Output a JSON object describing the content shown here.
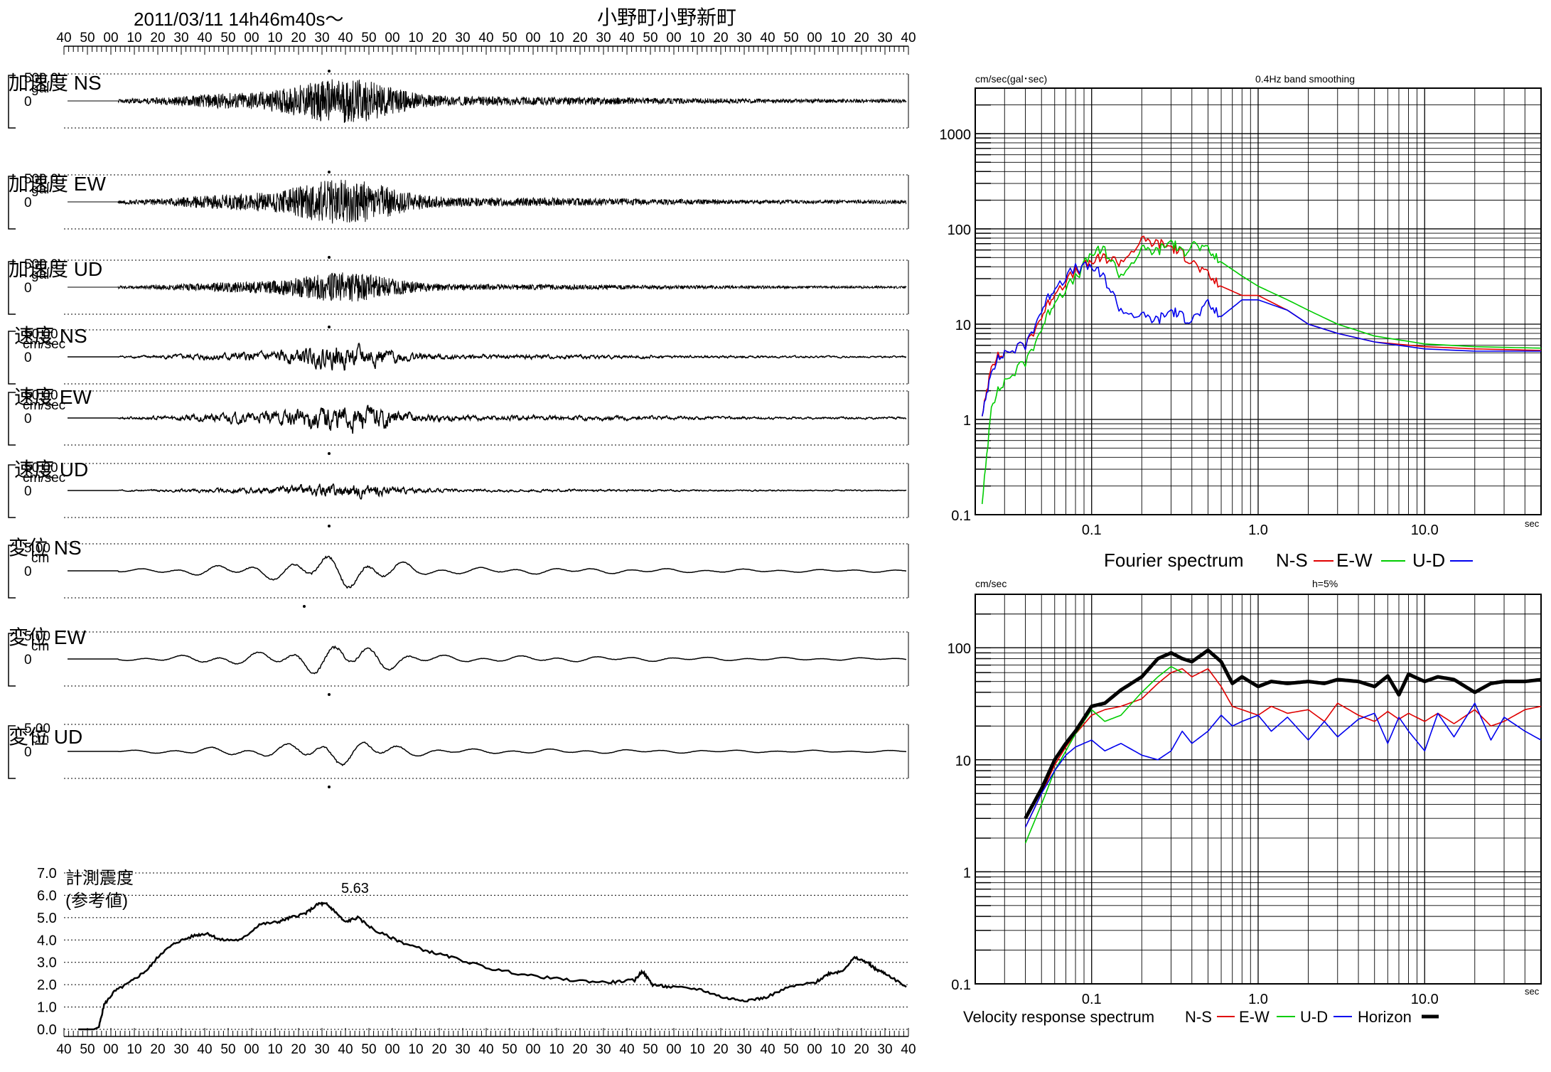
{
  "header": {
    "datetime": "2011/03/11  14h46m40s〜",
    "station": "小野町小野新町"
  },
  "time_axis_labels": [
    "40",
    "50",
    "00",
    "10",
    "20",
    "30",
    "40",
    "50",
    "00",
    "10",
    "20",
    "30",
    "40",
    "50",
    "00",
    "10",
    "20",
    "30",
    "40",
    "50",
    "00",
    "10",
    "20",
    "30",
    "40",
    "50",
    "00",
    "10",
    "20",
    "30",
    "40",
    "50",
    "00",
    "10",
    "20",
    "30",
    "40"
  ],
  "channels": [
    {
      "title": "加速度 NS",
      "scale": "500.0",
      "unit": "gal",
      "zero": "0",
      "kind": "acc",
      "seed": 11,
      "amp": 1.0,
      "peak_up": true
    },
    {
      "title": "加速度 EW",
      "scale": "500.0",
      "unit": "gal",
      "zero": "0",
      "kind": "acc",
      "seed": 23,
      "amp": 1.0,
      "peak_up": true
    },
    {
      "title": "加速度 UD",
      "scale": "500.0",
      "unit": "gal",
      "zero": "0",
      "kind": "acc",
      "seed": 37,
      "amp": 0.65,
      "peak_up": true
    },
    {
      "title": "速度 NS",
      "scale": "50.00",
      "unit": "cm/sec",
      "zero": "0",
      "kind": "vel",
      "seed": 41,
      "amp": 0.75,
      "peak_up": true
    },
    {
      "title": "速度 EW",
      "scale": "50.00",
      "unit": "cm/sec",
      "zero": "0",
      "kind": "vel",
      "seed": 53,
      "amp": 0.9,
      "peak_up": false
    },
    {
      "title": "速度 UD",
      "scale": "50.00",
      "unit": "cm/sec",
      "zero": "0",
      "kind": "vel",
      "seed": 67,
      "amp": 0.45,
      "peak_up": false
    },
    {
      "title": "変位 NS",
      "scale": "5.00",
      "unit": "cm",
      "zero": "0",
      "kind": "disp",
      "seed": 71,
      "amp": 1.0,
      "peak_up": false
    },
    {
      "title": "変位 EW",
      "scale": "5.00",
      "unit": "cm",
      "zero": "0",
      "kind": "disp",
      "seed": 83,
      "amp": 0.95,
      "peak_up": false
    },
    {
      "title": "変位 UD",
      "scale": "5.00",
      "unit": "cm",
      "zero": "0",
      "kind": "disp",
      "seed": 97,
      "amp": 0.75,
      "peak_up": false
    }
  ],
  "intensity": {
    "label_line1": "計測震度",
    "label_line2": "(参考値)",
    "peak_label": "5.63",
    "y_ticks": [
      "7.0",
      "6.0",
      "5.0",
      "4.0",
      "3.0",
      "2.0",
      "1.0",
      "0.0"
    ],
    "chart_data": {
      "type": "line",
      "x_unit": "sec",
      "x": [
        0,
        3,
        6,
        8,
        10,
        14,
        20,
        27,
        32,
        38,
        45,
        50,
        55,
        63,
        70,
        77,
        82,
        88,
        93,
        96,
        99,
        103,
        108,
        115,
        125,
        135,
        145,
        160,
        175,
        190,
        205,
        215,
        218,
        222,
        228,
        240,
        250,
        258,
        265,
        275,
        285,
        290,
        295,
        300,
        305,
        308,
        312,
        320
      ],
      "y": [
        0.0,
        0.0,
        0.0,
        0.1,
        1.1,
        1.7,
        2.1,
        2.7,
        3.4,
        3.9,
        4.2,
        4.3,
        4.0,
        4.0,
        4.7,
        4.8,
        5.0,
        5.2,
        5.63,
        5.6,
        5.3,
        4.8,
        5.0,
        4.4,
        3.9,
        3.5,
        3.2,
        2.7,
        2.4,
        2.2,
        2.1,
        2.2,
        2.6,
        2.0,
        1.9,
        1.8,
        1.4,
        1.3,
        1.4,
        1.9,
        2.1,
        2.5,
        2.6,
        3.2,
        3.0,
        2.7,
        2.5,
        1.9
      ],
      "ylim": [
        0,
        7
      ]
    }
  },
  "fourier": {
    "ylabel": "cm/sec(gal･sec)",
    "note": "0.4Hz band smoothing",
    "x_unit_label": "sec",
    "x_tick_labels": [
      "0.1",
      "1.0",
      "10.0"
    ],
    "y_tick_labels": [
      "1000",
      "100",
      "10",
      "1",
      "0.1"
    ],
    "legend_title": "Fourier spectrum",
    "legend": [
      {
        "label": "N-S",
        "color": "#e00000"
      },
      {
        "label": "E-W",
        "color": "#00cc00"
      },
      {
        "label": "U-D",
        "color": "#0000ee"
      }
    ],
    "chart_data": {
      "type": "line",
      "xscale": "log",
      "yscale": "log",
      "xlim": [
        0.02,
        50
      ],
      "ylim": [
        0.1,
        3000
      ],
      "series": [
        {
          "name": "N-S",
          "color": "#e00000",
          "x": [
            0.022,
            0.025,
            0.03,
            0.04,
            0.05,
            0.06,
            0.08,
            0.1,
            0.12,
            0.15,
            0.2,
            0.25,
            0.3,
            0.35,
            0.4,
            0.5,
            0.6,
            0.8,
            1.0,
            1.5,
            2,
            3,
            5,
            10,
            20,
            50
          ],
          "y": [
            1,
            4,
            5,
            6,
            12,
            22,
            35,
            45,
            50,
            45,
            75,
            70,
            65,
            55,
            45,
            32,
            25,
            20,
            20,
            14,
            10,
            8,
            6.5,
            5.8,
            5.5,
            5.3
          ]
        },
        {
          "name": "E-W",
          "color": "#00cc00",
          "x": [
            0.022,
            0.025,
            0.03,
            0.04,
            0.05,
            0.06,
            0.08,
            0.1,
            0.12,
            0.15,
            0.2,
            0.25,
            0.3,
            0.35,
            0.4,
            0.5,
            0.6,
            0.8,
            1.0,
            1.5,
            2,
            3,
            5,
            10,
            20,
            50
          ],
          "y": [
            0.12,
            1.5,
            2.5,
            4,
            9,
            18,
            30,
            55,
            60,
            32,
            60,
            58,
            75,
            55,
            70,
            58,
            45,
            32,
            25,
            18,
            14,
            10,
            7.5,
            6.2,
            5.8,
            5.6
          ]
        },
        {
          "name": "U-D",
          "color": "#0000ee",
          "x": [
            0.022,
            0.025,
            0.03,
            0.04,
            0.05,
            0.06,
            0.08,
            0.1,
            0.12,
            0.15,
            0.2,
            0.25,
            0.3,
            0.35,
            0.4,
            0.5,
            0.6,
            0.8,
            1.0,
            1.5,
            2,
            3,
            5,
            10,
            20,
            50
          ],
          "y": [
            1,
            3.5,
            5,
            6,
            14,
            25,
            38,
            40,
            30,
            14,
            12,
            11,
            14,
            12,
            11,
            16,
            12,
            18,
            18,
            14,
            10,
            8,
            6.5,
            5.5,
            5.2,
            5.2
          ]
        }
      ]
    }
  },
  "response": {
    "ylabel": "cm/sec",
    "note": "h=5%",
    "x_unit_label": "sec",
    "x_tick_labels": [
      "0.1",
      "1.0",
      "10.0"
    ],
    "y_tick_labels": [
      "100",
      "10",
      "1",
      "0.1"
    ],
    "legend_title": "Velocity response spectrum",
    "legend": [
      {
        "label": "N-S",
        "color": "#e00000",
        "bold": false
      },
      {
        "label": "E-W",
        "color": "#00cc00",
        "bold": false
      },
      {
        "label": "U-D",
        "color": "#0000ee",
        "bold": false
      },
      {
        "label": "Horizon",
        "color": "#000000",
        "bold": true
      }
    ],
    "chart_data": {
      "type": "line",
      "xscale": "log",
      "yscale": "log",
      "xlim": [
        0.02,
        50
      ],
      "ylim": [
        0.1,
        300
      ],
      "series": [
        {
          "name": "N-S",
          "color": "#e00000",
          "x": [
            0.04,
            0.05,
            0.06,
            0.07,
            0.08,
            0.1,
            0.12,
            0.15,
            0.2,
            0.25,
            0.3,
            0.35,
            0.4,
            0.5,
            0.6,
            0.7,
            0.8,
            1.0,
            1.2,
            1.5,
            2,
            2.5,
            3,
            4,
            5,
            6,
            7,
            8,
            10,
            12,
            15,
            20,
            25,
            30,
            40,
            50
          ],
          "y": [
            2.5,
            5,
            9,
            13,
            17,
            25,
            28,
            30,
            35,
            48,
            60,
            65,
            55,
            65,
            45,
            30,
            28,
            25,
            30,
            26,
            28,
            22,
            32,
            25,
            22,
            27,
            23,
            26,
            22,
            26,
            21,
            28,
            20,
            22,
            28,
            30
          ]
        },
        {
          "name": "E-W",
          "color": "#00cc00",
          "x": [
            0.04,
            0.05,
            0.06,
            0.07,
            0.08,
            0.1,
            0.12,
            0.15,
            0.2,
            0.25,
            0.3,
            0.35
          ],
          "y": [
            1.8,
            4,
            8,
            12,
            17,
            28,
            22,
            25,
            40,
            55,
            68,
            60
          ]
        },
        {
          "name": "U-D",
          "color": "#0000ee",
          "x": [
            0.04,
            0.05,
            0.06,
            0.07,
            0.08,
            0.1,
            0.12,
            0.15,
            0.2,
            0.25,
            0.3,
            0.35,
            0.4,
            0.5,
            0.6,
            0.7,
            0.8,
            1.0,
            1.2,
            1.5,
            2,
            2.5,
            3,
            4,
            5,
            6,
            7,
            8,
            10,
            12,
            15,
            20,
            25,
            30,
            40,
            50
          ],
          "y": [
            2.5,
            5,
            8,
            11,
            13,
            15,
            12,
            14,
            11,
            10,
            12,
            18,
            14,
            18,
            25,
            20,
            22,
            25,
            18,
            24,
            15,
            22,
            16,
            23,
            26,
            14,
            24,
            18,
            12,
            26,
            16,
            32,
            15,
            24,
            18,
            15
          ]
        },
        {
          "name": "Horizon",
          "color": "#000000",
          "x": [
            0.04,
            0.05,
            0.06,
            0.07,
            0.08,
            0.1,
            0.12,
            0.15,
            0.2,
            0.25,
            0.3,
            0.35,
            0.4,
            0.5,
            0.6,
            0.7,
            0.8,
            1.0,
            1.2,
            1.5,
            2,
            2.5,
            3,
            4,
            5,
            6,
            7,
            8,
            10,
            12,
            15,
            20,
            25,
            30,
            40,
            50
          ],
          "y": [
            3,
            5.5,
            10,
            14,
            18,
            30,
            32,
            42,
            55,
            80,
            90,
            80,
            75,
            95,
            75,
            48,
            55,
            45,
            50,
            48,
            50,
            48,
            52,
            50,
            45,
            56,
            38,
            58,
            50,
            55,
            52,
            40,
            48,
            50,
            50,
            52
          ]
        }
      ]
    }
  }
}
